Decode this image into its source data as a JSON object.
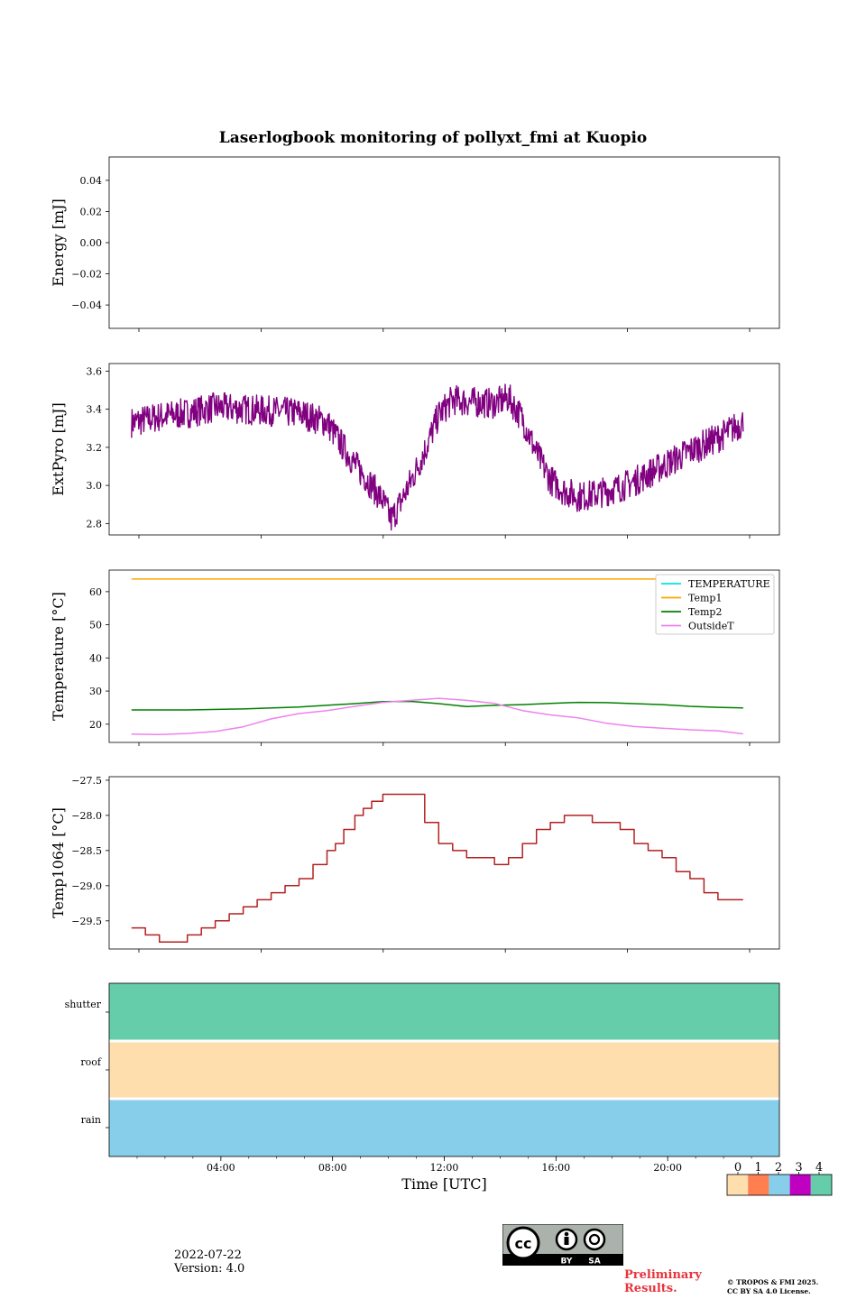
{
  "title": "Laserlogbook monitoring of pollyxt_fmi at Kuopio",
  "date": "2022-07-22",
  "version": "Version: 4.0",
  "preliminary": [
    "Preliminary",
    "Results."
  ],
  "copyright": [
    "© TROPOS & FMI 2025.",
    "CC BY SA 4.0 License."
  ],
  "cc_badge": [
    "BY",
    "SA"
  ],
  "colors": {
    "extpyro": "#800080",
    "temperature": "#00e5e5",
    "temp1": "#ffa500",
    "temp2": "#008000",
    "outsideT": "#ee82ee",
    "temp1064": "#b22222",
    "shutter": "#66cdaa",
    "roof": "#ffdead",
    "rain": "#87ceeb"
  },
  "chart_data": [
    {
      "type": "line",
      "name": "energy",
      "ylabel": "Energy [mJ]",
      "ylim": [
        -0.055,
        0.055
      ],
      "yticks": [
        0.04,
        0.02,
        0.0,
        -0.02,
        -0.04
      ],
      "ytick_labels": [
        "0.04",
        "0.02",
        "0.00",
        "−0.02",
        "−0.04"
      ],
      "series": []
    },
    {
      "type": "line",
      "name": "extpyro",
      "ylabel": "ExtPyro [mJ]",
      "ylim": [
        2.74,
        3.64
      ],
      "yticks": [
        2.8,
        3.0,
        3.2,
        3.4,
        3.6
      ],
      "ytick_labels": [
        "2.8",
        "3.0",
        "3.2",
        "3.4",
        "3.6"
      ],
      "series": [
        {
          "name": "ExtPyro",
          "x": [
            1.0,
            2.0,
            3.0,
            4.0,
            5.0,
            6.0,
            7.0,
            8.0,
            8.5,
            9.0,
            9.5,
            10.0,
            10.3,
            10.6,
            11.0,
            11.5,
            12.0,
            12.5,
            13.0,
            14.0,
            14.5,
            15.0,
            15.5,
            16.0,
            16.5,
            17.0,
            17.5,
            18.0,
            18.5,
            19.0,
            20.0,
            21.0,
            22.0,
            22.9
          ],
          "y": [
            3.33,
            3.36,
            3.38,
            3.41,
            3.4,
            3.39,
            3.38,
            3.33,
            3.22,
            3.11,
            3.02,
            2.92,
            2.82,
            2.9,
            3.02,
            3.18,
            3.37,
            3.45,
            3.44,
            3.43,
            3.46,
            3.35,
            3.17,
            3.03,
            2.97,
            2.94,
            2.95,
            2.97,
            2.99,
            3.02,
            3.1,
            3.18,
            3.25,
            3.33
          ]
        }
      ]
    },
    {
      "type": "line",
      "name": "temperatures",
      "ylabel": "Temperature [°C]",
      "ylim": [
        14.5,
        66.5
      ],
      "yticks": [
        20,
        30,
        40,
        50,
        60
      ],
      "ytick_labels": [
        "20",
        "30",
        "40",
        "50",
        "60"
      ],
      "legend_position": "top-right",
      "series": [
        {
          "name": "TEMPERATURE",
          "x": [],
          "y": []
        },
        {
          "name": "Temp1",
          "x": [
            1.0,
            22.9
          ],
          "y": [
            63.8,
            63.8
          ]
        },
        {
          "name": "Temp2",
          "x": [
            1.0,
            3.0,
            5.0,
            7.0,
            9.0,
            10.0,
            11.0,
            12.0,
            13.0,
            14.0,
            15.0,
            16.0,
            17.0,
            18.0,
            19.0,
            20.0,
            21.0,
            22.0,
            22.9
          ],
          "y": [
            24.3,
            24.3,
            24.6,
            25.2,
            26.2,
            26.8,
            26.9,
            26.2,
            25.3,
            25.7,
            25.9,
            26.3,
            26.6,
            26.5,
            26.2,
            25.9,
            25.4,
            25.1,
            24.9
          ]
        },
        {
          "name": "OutsideT",
          "x": [
            1.0,
            2.0,
            3.0,
            4.0,
            5.0,
            6.0,
            7.0,
            8.0,
            9.0,
            10.0,
            11.0,
            12.0,
            13.0,
            14.0,
            15.0,
            16.0,
            17.0,
            18.0,
            19.0,
            20.0,
            21.0,
            22.0,
            22.9
          ],
          "y": [
            17.0,
            16.9,
            17.2,
            17.8,
            19.2,
            21.6,
            23.2,
            24.1,
            25.4,
            26.6,
            27.2,
            27.8,
            27.2,
            26.3,
            24.1,
            22.8,
            21.9,
            20.3,
            19.3,
            18.8,
            18.3,
            18.0,
            17.1
          ]
        }
      ]
    },
    {
      "type": "line",
      "name": "temp1064",
      "ylabel": "Temp1064 [°C]",
      "ylim": [
        -29.9,
        -27.45
      ],
      "yticks": [
        -27.5,
        -28.0,
        -28.5,
        -29.0,
        -29.5
      ],
      "ytick_labels": [
        "−27.5",
        "−28.0",
        "−28.5",
        "−29.0",
        "−29.5"
      ],
      "series": [
        {
          "name": "Temp1064",
          "step": true,
          "x": [
            1.0,
            1.5,
            2.0,
            3.0,
            3.5,
            4.0,
            4.5,
            5.0,
            5.5,
            6.0,
            6.5,
            7.0,
            7.5,
            8.0,
            8.3,
            8.6,
            9.0,
            9.3,
            9.6,
            10.0,
            10.5,
            11.0,
            11.5,
            12.0,
            12.5,
            13.0,
            13.5,
            14.0,
            14.5,
            15.0,
            15.5,
            16.0,
            16.5,
            17.0,
            17.5,
            18.0,
            18.5,
            19.0,
            19.5,
            20.0,
            20.5,
            21.0,
            21.5,
            22.0,
            22.3,
            22.9
          ],
          "y": [
            -29.6,
            -29.7,
            -29.8,
            -29.7,
            -29.6,
            -29.5,
            -29.4,
            -29.3,
            -29.2,
            -29.1,
            -29.0,
            -28.9,
            -28.7,
            -28.5,
            -28.4,
            -28.2,
            -28.0,
            -27.9,
            -27.8,
            -27.7,
            -27.7,
            -27.7,
            -28.1,
            -28.4,
            -28.5,
            -28.6,
            -28.6,
            -28.7,
            -28.6,
            -28.4,
            -28.2,
            -28.1,
            -28.0,
            -28.0,
            -28.1,
            -28.1,
            -28.2,
            -28.4,
            -28.5,
            -28.6,
            -28.8,
            -28.9,
            -29.1,
            -29.2,
            -29.2,
            -29.2
          ]
        }
      ]
    },
    {
      "type": "heatmap",
      "name": "status",
      "rows": [
        "shutter",
        "roof",
        "rain"
      ],
      "row_status": [
        4,
        0,
        2
      ],
      "xlabel": "Time [UTC]",
      "xlim": [
        0,
        24
      ],
      "xticks": [
        4,
        8,
        12,
        16,
        20
      ],
      "xtick_labels": [
        "04:00",
        "08:00",
        "12:00",
        "16:00",
        "20:00"
      ],
      "colorbar": {
        "ticks": [
          "0",
          "1",
          "2",
          "3",
          "4"
        ],
        "colors": [
          "#ffdead",
          "#ff7f50",
          "#87ceeb",
          "#c000c0",
          "#66cdaa"
        ]
      }
    }
  ]
}
